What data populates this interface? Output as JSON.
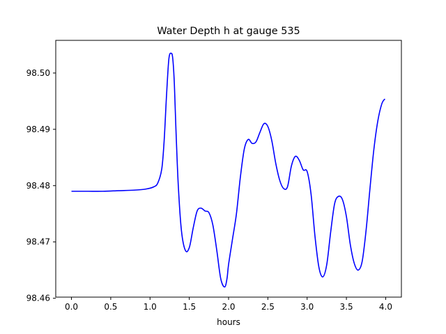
{
  "chart_data": {
    "type": "line",
    "title": "Water Depth h at gauge 535",
    "xlabel": "hours",
    "ylabel": "",
    "xlim": [
      -0.2,
      4.2
    ],
    "ylim": [
      98.4602,
      98.5058
    ],
    "x_ticks": [
      0.0,
      0.5,
      1.0,
      1.5,
      2.0,
      2.5,
      3.0,
      3.5,
      4.0
    ],
    "x_tick_labels": [
      "0.0",
      "0.5",
      "1.0",
      "1.5",
      "2.0",
      "2.5",
      "3.0",
      "3.5",
      "4.0"
    ],
    "y_ticks": [
      98.46,
      98.47,
      98.48,
      98.49,
      98.5
    ],
    "y_tick_labels": [
      "98.46",
      "98.47",
      "98.48",
      "98.49",
      "98.50"
    ],
    "grid": false,
    "series": [
      {
        "color": "#0000ff",
        "x": [
          0.0,
          0.2,
          0.4,
          0.6,
          0.8,
          0.95,
          1.05,
          1.1,
          1.15,
          1.18,
          1.21,
          1.24,
          1.27,
          1.29,
          1.31,
          1.33,
          1.36,
          1.4,
          1.45,
          1.5,
          1.55,
          1.6,
          1.65,
          1.7,
          1.75,
          1.8,
          1.85,
          1.9,
          1.95,
          1.98,
          2.0,
          2.05,
          2.1,
          2.15,
          2.2,
          2.25,
          2.3,
          2.35,
          2.4,
          2.45,
          2.5,
          2.55,
          2.6,
          2.65,
          2.7,
          2.75,
          2.8,
          2.85,
          2.9,
          2.95,
          3.0,
          3.05,
          3.1,
          3.15,
          3.2,
          3.25,
          3.3,
          3.35,
          3.4,
          3.45,
          3.5,
          3.55,
          3.6,
          3.65,
          3.7,
          3.75,
          3.8,
          3.85,
          3.9,
          3.95,
          3.99
        ],
        "y": [
          98.479,
          98.479,
          98.479,
          98.4791,
          98.4792,
          98.4794,
          98.4798,
          98.4805,
          98.483,
          98.488,
          98.496,
          98.5025,
          98.5035,
          98.5025,
          98.498,
          98.49,
          98.48,
          98.472,
          98.4685,
          98.469,
          98.4725,
          98.4755,
          98.476,
          98.4755,
          98.4752,
          98.473,
          98.4685,
          98.4635,
          98.462,
          98.4635,
          98.466,
          98.4705,
          98.475,
          98.4815,
          98.4865,
          98.4882,
          98.4875,
          98.4878,
          98.4895,
          98.491,
          98.4905,
          98.488,
          98.484,
          98.481,
          98.4795,
          98.4798,
          98.4835,
          98.4852,
          98.4845,
          98.4828,
          98.4825,
          98.4785,
          98.471,
          98.4655,
          98.4638,
          98.466,
          98.4718,
          98.4768,
          98.4781,
          98.4775,
          98.4745,
          98.4695,
          98.4662,
          98.465,
          98.4665,
          98.472,
          98.4795,
          98.4865,
          98.4915,
          98.4945,
          98.4954
        ]
      }
    ]
  }
}
